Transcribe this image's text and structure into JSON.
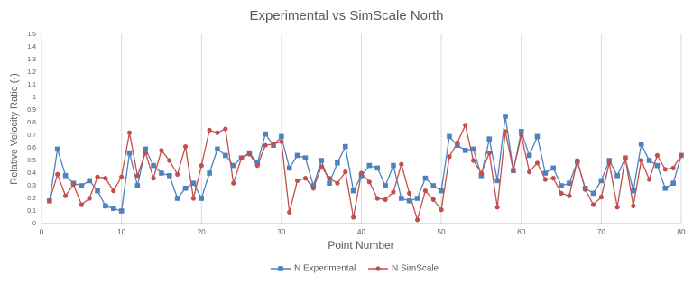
{
  "chart_data": {
    "type": "line",
    "title": "Experimental vs SimScale North",
    "x_label": "Point Number",
    "y_label": "Relative Velocity Ratio (-)",
    "x": [
      1,
      2,
      3,
      4,
      5,
      6,
      7,
      8,
      9,
      10,
      11,
      12,
      13,
      14,
      15,
      16,
      17,
      18,
      19,
      20,
      21,
      22,
      23,
      24,
      25,
      26,
      27,
      28,
      29,
      30,
      31,
      32,
      33,
      34,
      35,
      36,
      37,
      38,
      39,
      40,
      41,
      42,
      43,
      44,
      45,
      46,
      47,
      48,
      49,
      50,
      51,
      52,
      53,
      54,
      55,
      56,
      57,
      58,
      59,
      60,
      61,
      62,
      63,
      64,
      65,
      66,
      67,
      68,
      69,
      70,
      71,
      72,
      73,
      74,
      75,
      76,
      77,
      78,
      79,
      80
    ],
    "series": [
      {
        "name": "N Experimental",
        "color": "#4f81bd",
        "marker": "square",
        "values": [
          0.18,
          0.59,
          0.38,
          0.32,
          0.3,
          0.34,
          0.26,
          0.14,
          0.12,
          0.1,
          0.56,
          0.3,
          0.59,
          0.46,
          0.4,
          0.38,
          0.2,
          0.28,
          0.32,
          0.2,
          0.4,
          0.59,
          0.54,
          0.46,
          0.52,
          0.56,
          0.48,
          0.71,
          0.62,
          0.69,
          0.44,
          0.54,
          0.52,
          0.3,
          0.5,
          0.32,
          0.48,
          0.61,
          0.26,
          0.38,
          0.46,
          0.44,
          0.3,
          0.46,
          0.2,
          0.18,
          0.2,
          0.36,
          0.3,
          0.26,
          0.69,
          0.62,
          0.58,
          0.59,
          0.38,
          0.67,
          0.34,
          0.85,
          0.42,
          0.73,
          0.54,
          0.69,
          0.4,
          0.44,
          0.3,
          0.32,
          0.49,
          0.28,
          0.24,
          0.34,
          0.5,
          0.38,
          0.52,
          0.26,
          0.63,
          0.5,
          0.46,
          0.28,
          0.32,
          0.54
        ]
      },
      {
        "name": "N SimScale",
        "color": "#c0504d",
        "marker": "circle",
        "values": [
          0.18,
          0.39,
          0.22,
          0.31,
          0.15,
          0.2,
          0.37,
          0.36,
          0.26,
          0.37,
          0.72,
          0.38,
          0.56,
          0.36,
          0.58,
          0.5,
          0.39,
          0.61,
          0.2,
          0.46,
          0.74,
          0.72,
          0.75,
          0.32,
          0.52,
          0.55,
          0.46,
          0.62,
          0.63,
          0.65,
          0.09,
          0.34,
          0.36,
          0.28,
          0.45,
          0.36,
          0.32,
          0.41,
          0.05,
          0.4,
          0.33,
          0.2,
          0.19,
          0.25,
          0.47,
          0.24,
          0.03,
          0.26,
          0.19,
          0.11,
          0.53,
          0.64,
          0.78,
          0.5,
          0.4,
          0.56,
          0.13,
          0.73,
          0.42,
          0.7,
          0.41,
          0.48,
          0.35,
          0.36,
          0.24,
          0.22,
          0.5,
          0.27,
          0.15,
          0.21,
          0.48,
          0.13,
          0.52,
          0.14,
          0.5,
          0.35,
          0.54,
          0.43,
          0.44,
          0.54
        ]
      }
    ],
    "xlim": [
      0,
      80
    ],
    "xticks": [
      0,
      10,
      20,
      30,
      40,
      50,
      60,
      70,
      80
    ],
    "ylim": [
      0,
      1.5
    ],
    "yticks": [
      0,
      0.1,
      0.2,
      0.3,
      0.4,
      0.5,
      0.6,
      0.7,
      0.8,
      0.9,
      1,
      1.1,
      1.2,
      1.3,
      1.4,
      1.5
    ],
    "grid": "x",
    "legend": "bottom"
  }
}
